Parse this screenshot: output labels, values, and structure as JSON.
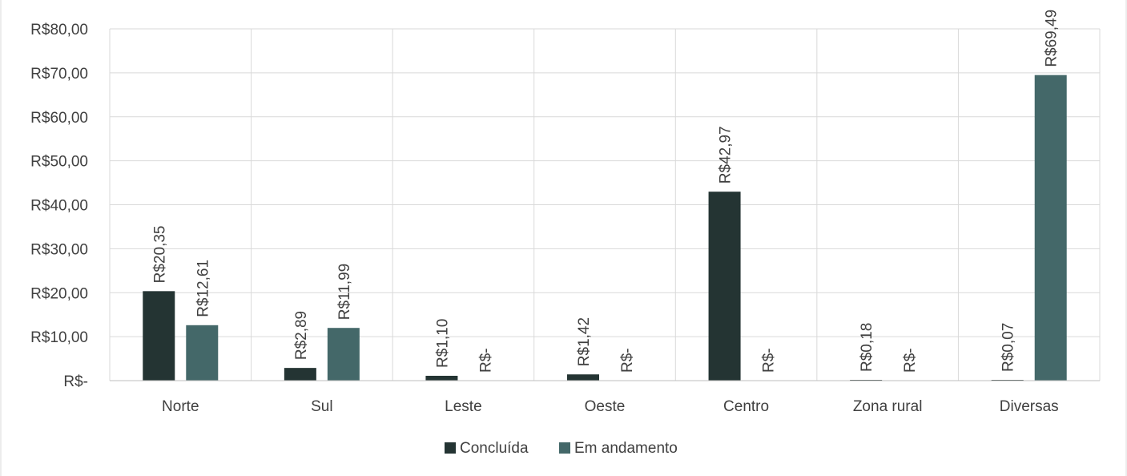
{
  "header": {
    "clipped_caption": ""
  },
  "chart_data": {
    "type": "bar",
    "title": "",
    "xlabel": "",
    "ylabel": "",
    "ylim": [
      0,
      80
    ],
    "ytick_values": [
      0,
      10,
      20,
      30,
      40,
      50,
      60,
      70,
      80
    ],
    "ytick_labels": [
      "R$-",
      "R$10,00",
      "R$20,00",
      "R$30,00",
      "R$40,00",
      "R$50,00",
      "R$60,00",
      "R$70,00",
      "R$80,00"
    ],
    "categories": [
      "Norte",
      "Sul",
      "Leste",
      "Oeste",
      "Centro",
      "Zona rural",
      "Diversas"
    ],
    "series": [
      {
        "name": "Concluída",
        "color": "#243433",
        "values": [
          20.35,
          2.89,
          1.1,
          1.42,
          42.97,
          0.18,
          0.07
        ],
        "labels": [
          "R$20,35",
          "R$2,89",
          "R$1,10",
          "R$1,42",
          "R$42,97",
          "R$0,18",
          "R$0,07"
        ]
      },
      {
        "name": "Em andamento",
        "color": "#446869",
        "values": [
          12.61,
          11.99,
          0,
          0,
          0,
          0,
          69.49
        ],
        "labels": [
          "R$12,61",
          "R$11,99",
          "R$-",
          "R$-",
          "R$-",
          "R$-",
          "R$69,49"
        ]
      }
    ],
    "grid": true,
    "legend_position": "bottom"
  }
}
